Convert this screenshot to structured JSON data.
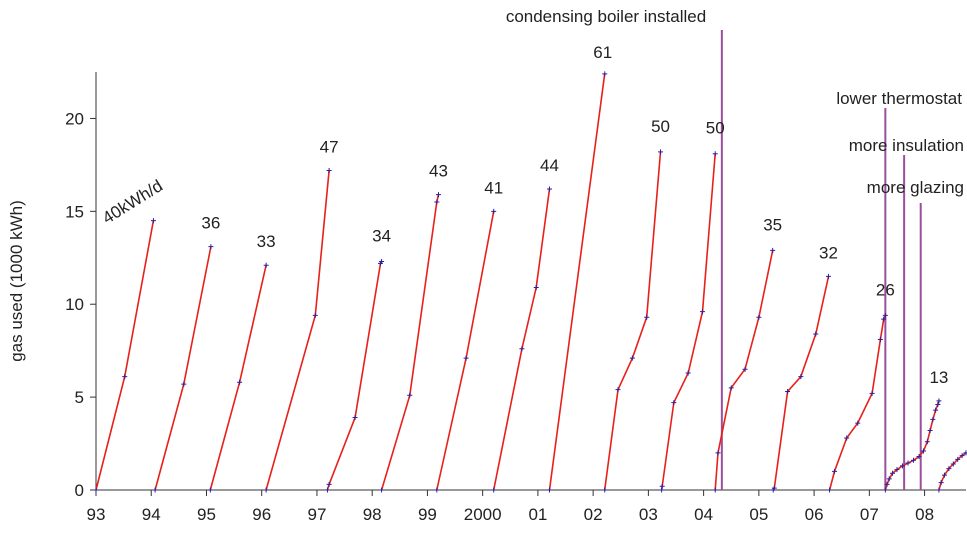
{
  "chart_data": {
    "type": "line",
    "title": "",
    "xlabel": "",
    "ylabel": "gas used (1000 kWh)",
    "xlim": [
      1993,
      2008.75
    ],
    "ylim": [
      0,
      22.5
    ],
    "grid": false,
    "x_ticks": [
      {
        "x": 1993,
        "label": "93"
      },
      {
        "x": 1994,
        "label": "94"
      },
      {
        "x": 1995,
        "label": "95"
      },
      {
        "x": 1996,
        "label": "96"
      },
      {
        "x": 1997,
        "label": "97"
      },
      {
        "x": 1998,
        "label": "98"
      },
      {
        "x": 1999,
        "label": "99"
      },
      {
        "x": 2000,
        "label": "2000"
      },
      {
        "x": 2001,
        "label": "01"
      },
      {
        "x": 2002,
        "label": "02"
      },
      {
        "x": 2003,
        "label": "03"
      },
      {
        "x": 2004,
        "label": "04"
      },
      {
        "x": 2005,
        "label": "05"
      },
      {
        "x": 2006,
        "label": "06"
      },
      {
        "x": 2007,
        "label": "07"
      },
      {
        "x": 2008,
        "label": "08"
      }
    ],
    "y_ticks": [
      0,
      5,
      10,
      15,
      20
    ],
    "line_color": "#e8201a",
    "marker_color": "#2a1f9e",
    "event_color": "#9b4f9b",
    "series": [
      {
        "label": "40kWh/d",
        "points": [
          [
            1993.0,
            0
          ],
          [
            1993.52,
            6.1
          ],
          [
            1994.04,
            14.5
          ]
        ]
      },
      {
        "label": "36",
        "points": [
          [
            1994.07,
            0
          ],
          [
            1994.59,
            5.7
          ],
          [
            1995.08,
            13.1
          ]
        ]
      },
      {
        "label": "33",
        "points": [
          [
            1995.07,
            0
          ],
          [
            1995.6,
            5.8
          ],
          [
            1996.08,
            12.1
          ]
        ]
      },
      {
        "label": "47",
        "points": [
          [
            1996.08,
            0
          ],
          [
            1996.97,
            9.4
          ],
          [
            1997.22,
            17.2
          ]
        ]
      },
      {
        "label": "34",
        "points": [
          [
            1997.19,
            0
          ],
          [
            1997.22,
            0.3
          ],
          [
            1997.69,
            3.9
          ],
          [
            1998.15,
            12.2
          ],
          [
            1998.17,
            12.3
          ]
        ]
      },
      {
        "label": "43",
        "points": [
          [
            1998.17,
            0
          ],
          [
            1998.68,
            5.1
          ],
          [
            1999.17,
            15.5
          ],
          [
            1999.2,
            15.9
          ]
        ]
      },
      {
        "label": "41",
        "points": [
          [
            1999.17,
            0
          ],
          [
            1999.7,
            7.1
          ],
          [
            2000.2,
            15.0
          ]
        ]
      },
      {
        "label": "44",
        "points": [
          [
            2000.2,
            0
          ],
          [
            2000.71,
            7.6
          ],
          [
            2000.97,
            10.9
          ],
          [
            2001.21,
            16.2
          ]
        ]
      },
      {
        "label": "61",
        "points": [
          [
            2001.21,
            0
          ],
          [
            2002.21,
            22.4
          ]
        ]
      },
      {
        "label": "50",
        "points": [
          [
            2002.21,
            0
          ],
          [
            2002.45,
            5.4
          ],
          [
            2002.71,
            7.1
          ],
          [
            2002.97,
            9.3
          ],
          [
            2003.22,
            18.2
          ]
        ]
      },
      {
        "label": "50",
        "points": [
          [
            2003.24,
            0
          ],
          [
            2003.25,
            0.2
          ],
          [
            2003.46,
            4.7
          ],
          [
            2003.72,
            6.3
          ],
          [
            2003.98,
            9.6
          ],
          [
            2004.21,
            18.1
          ]
        ]
      },
      {
        "label": "35",
        "points": [
          [
            2004.21,
            0
          ],
          [
            2004.26,
            2.0
          ],
          [
            2004.5,
            5.5
          ],
          [
            2004.75,
            6.5
          ],
          [
            2005.0,
            9.3
          ],
          [
            2005.25,
            12.9
          ]
        ]
      },
      {
        "label": "32",
        "points": [
          [
            2005.26,
            0
          ],
          [
            2005.28,
            0.1
          ],
          [
            2005.52,
            5.3
          ],
          [
            2005.76,
            6.1
          ],
          [
            2006.03,
            8.4
          ],
          [
            2006.26,
            11.5
          ]
        ]
      },
      {
        "label": "26",
        "points": [
          [
            2006.28,
            0
          ],
          [
            2006.37,
            1.0
          ],
          [
            2006.59,
            2.8
          ],
          [
            2006.79,
            3.6
          ],
          [
            2007.05,
            5.2
          ],
          [
            2007.2,
            8.1
          ],
          [
            2007.26,
            9.2
          ],
          [
            2007.29,
            9.4
          ]
        ]
      },
      {
        "label": "13",
        "points": [
          [
            2007.29,
            0
          ],
          [
            2007.32,
            0.3
          ],
          [
            2007.36,
            0.6
          ],
          [
            2007.42,
            0.9
          ],
          [
            2007.5,
            1.1
          ],
          [
            2007.6,
            1.3
          ],
          [
            2007.7,
            1.45
          ],
          [
            2007.8,
            1.6
          ],
          [
            2007.9,
            1.8
          ],
          [
            2007.98,
            2.1
          ],
          [
            2008.05,
            2.6
          ],
          [
            2008.1,
            3.2
          ],
          [
            2008.15,
            3.8
          ],
          [
            2008.2,
            4.3
          ],
          [
            2008.24,
            4.6
          ],
          [
            2008.26,
            4.8
          ]
        ]
      },
      {
        "label": "",
        "points": [
          [
            2008.26,
            0
          ],
          [
            2008.3,
            0.4
          ],
          [
            2008.36,
            0.8
          ],
          [
            2008.44,
            1.15
          ],
          [
            2008.52,
            1.4
          ],
          [
            2008.6,
            1.65
          ],
          [
            2008.68,
            1.85
          ],
          [
            2008.75,
            2.0
          ]
        ]
      }
    ],
    "events": [
      {
        "label": "condensing boiler installed",
        "x": 2004.33
      },
      {
        "label": "lower thermostat",
        "x": 2007.29
      },
      {
        "label": "more insulation",
        "x": 2007.63
      },
      {
        "label": "more glazing",
        "x": 2007.93
      }
    ]
  }
}
